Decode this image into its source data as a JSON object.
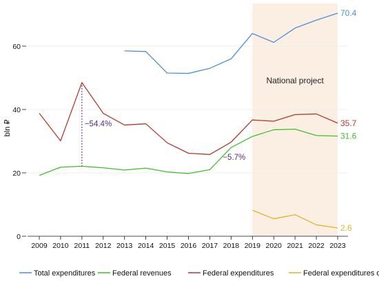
{
  "chart_data": {
    "type": "line",
    "x": [
      2009,
      2010,
      2011,
      2012,
      2013,
      2014,
      2015,
      2016,
      2017,
      2018,
      2019,
      2020,
      2021,
      2022,
      2023
    ],
    "ylabel": "bln ₽",
    "ylim": [
      0,
      72
    ],
    "yticks": [
      0,
      20,
      40,
      60
    ],
    "grid": true,
    "legend_position": "bottom",
    "highlight_band": {
      "from": 2019,
      "to": 2023,
      "label": "National project",
      "color": "#fbeee2"
    },
    "series": [
      {
        "name": "Total expenditures",
        "color": "#4a8fdc",
        "values": [
          null,
          null,
          null,
          null,
          58.5,
          58.3,
          51.5,
          51.4,
          53.0,
          56.0,
          64.0,
          61.2,
          65.7,
          68.2,
          70.4
        ],
        "end_label": "70.4"
      },
      {
        "name": "Federal revenues",
        "color": "#3fbf2a",
        "values": [
          19.2,
          21.8,
          22.1,
          21.6,
          20.9,
          21.5,
          20.3,
          19.8,
          21.0,
          28.0,
          31.5,
          33.6,
          33.8,
          31.8,
          31.6
        ],
        "end_label": "31.6"
      },
      {
        "name": "Federal expenditures",
        "color": "#b03a2e",
        "values": [
          38.8,
          30.1,
          48.5,
          38.8,
          35.1,
          35.5,
          29.5,
          26.2,
          25.8,
          29.7,
          36.7,
          36.3,
          38.4,
          38.6,
          35.7
        ],
        "end_label": "35.7"
      },
      {
        "name": "Federal expenditures on the national project",
        "color": "#e0b628",
        "values": [
          null,
          null,
          null,
          null,
          null,
          null,
          null,
          null,
          null,
          null,
          8.2,
          5.5,
          6.8,
          3.6,
          2.6
        ],
        "end_label": "2.6"
      }
    ],
    "annotations": [
      {
        "text": "−54.4%",
        "x": 2011,
        "y_from": 48.5,
        "y_to": 22.1,
        "label_y": 35.5
      },
      {
        "text": "−5.7%",
        "x": 2018,
        "label_y": 25.0
      }
    ]
  }
}
